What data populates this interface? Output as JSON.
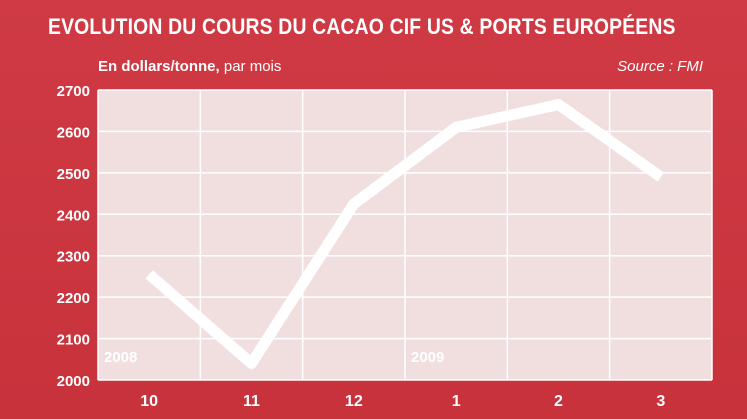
{
  "title": "EVOLUTION DU COURS DU CACAO CIF US & PORTS EUROPÉENS",
  "subtitle_bold": "En dollars/tonne,",
  "subtitle_light": " par mois",
  "source": "Source : FMI",
  "colors": {
    "background": "#c8323c",
    "plot": "#f1dfe0",
    "line": "#ffffff",
    "text": "#ffffff",
    "grid": "#ffffff",
    "year_label": "#ffffff"
  },
  "chart_data": {
    "type": "line",
    "categories": [
      "10",
      "11",
      "12",
      "1",
      "2",
      "3"
    ],
    "series": [
      {
        "values": [
          2255,
          2040,
          2425,
          2610,
          2665,
          2490
        ]
      }
    ],
    "ylim": [
      2000,
      2700
    ],
    "yticks": [
      2000,
      2100,
      2200,
      2300,
      2400,
      2500,
      2600,
      2700
    ],
    "grid": true,
    "year_labels": [
      {
        "text": "2008",
        "at_category": "10"
      },
      {
        "text": "2009",
        "at_category": "1"
      }
    ],
    "year_divider_before": "1"
  }
}
